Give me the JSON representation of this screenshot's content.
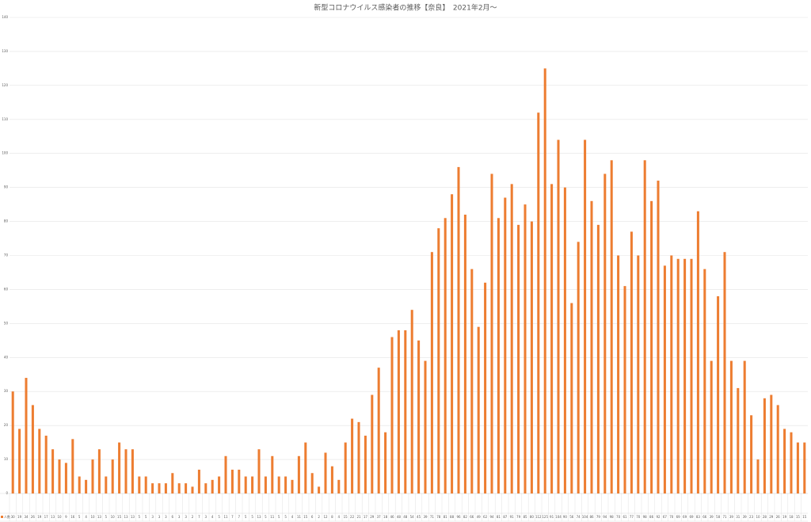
{
  "chart_data": {
    "type": "bar",
    "title": "新型コロナウイルス感染者の推移【奈良】　2021年2月～",
    "series": [
      {
        "name": "人数",
        "color": "#ed7d31",
        "values": [
          30,
          19,
          34,
          26,
          19,
          17,
          13,
          10,
          9,
          16,
          5,
          4,
          10,
          13,
          5,
          10,
          15,
          13,
          13,
          5,
          5,
          3,
          3,
          3,
          6,
          3,
          3,
          2,
          7,
          3,
          4,
          5,
          11,
          7,
          7,
          5,
          5,
          13,
          5,
          11,
          5,
          5,
          4,
          11,
          15,
          6,
          2,
          12,
          8,
          4,
          15,
          22,
          21,
          17,
          29,
          37,
          18,
          46,
          48,
          48,
          54,
          45,
          39,
          71,
          78,
          81,
          88,
          96,
          82,
          66,
          49,
          62,
          94,
          81,
          87,
          91,
          79,
          85,
          80,
          112,
          125,
          91,
          104,
          90,
          56,
          74,
          104,
          86,
          79,
          94,
          98,
          70,
          61,
          77,
          70,
          98,
          86,
          92,
          67,
          70,
          69,
          69,
          69,
          83,
          66,
          39,
          58,
          71,
          39,
          31,
          39,
          23,
          10,
          28,
          29,
          26,
          19,
          18,
          15,
          15
        ]
      }
    ],
    "ylim": [
      0,
      140
    ],
    "yticks": [
      0,
      10,
      20,
      30,
      40,
      50,
      60,
      70,
      80,
      90,
      100,
      110,
      120,
      130,
      140
    ],
    "grid": true
  }
}
